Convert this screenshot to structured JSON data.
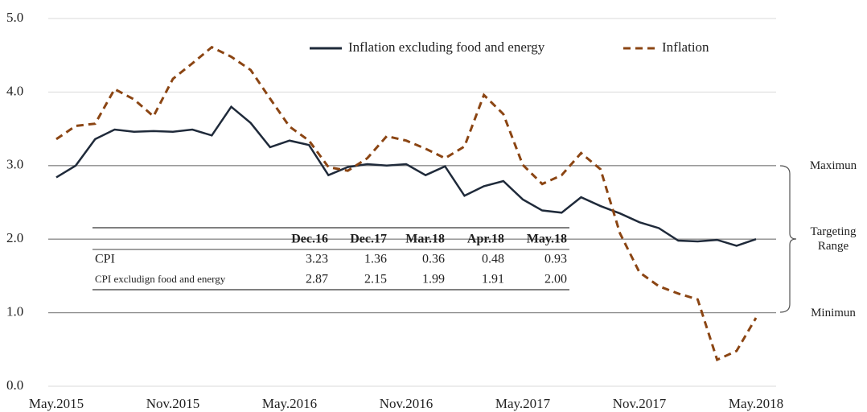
{
  "chart_data": {
    "type": "line",
    "categories": [
      "May.2015",
      null,
      null,
      null,
      null,
      null,
      "Nov.2015",
      null,
      null,
      null,
      null,
      null,
      "May.2016",
      null,
      null,
      null,
      null,
      null,
      "Nov.2016",
      null,
      null,
      null,
      null,
      null,
      "May.2017",
      null,
      null,
      null,
      null,
      null,
      "Nov.2017",
      null,
      null,
      null,
      null,
      null,
      "May.2018"
    ],
    "series": [
      {
        "name": "Inflation excluding food and energy",
        "color": "#1f2a3a",
        "dash": false,
        "values": [
          2.84,
          3.0,
          3.36,
          3.49,
          3.46,
          3.47,
          3.46,
          3.49,
          3.41,
          3.8,
          3.58,
          3.25,
          3.34,
          3.28,
          2.87,
          2.98,
          3.02,
          3.0,
          3.02,
          2.87,
          2.99,
          2.59,
          2.72,
          2.79,
          2.54,
          2.39,
          2.36,
          2.57,
          2.45,
          2.35,
          2.23,
          2.15,
          1.98,
          1.97,
          1.99,
          1.91,
          2.0
        ]
      },
      {
        "name": "Inflation",
        "color": "#8b4513",
        "dash": true,
        "values": [
          3.36,
          3.54,
          3.57,
          4.04,
          3.9,
          3.67,
          4.18,
          4.39,
          4.61,
          4.48,
          4.3,
          3.91,
          3.53,
          3.34,
          2.98,
          2.93,
          3.1,
          3.4,
          3.34,
          3.23,
          3.1,
          3.26,
          3.96,
          3.7,
          3.01,
          2.75,
          2.87,
          3.17,
          2.95,
          2.08,
          1.55,
          1.36,
          1.26,
          1.18,
          0.36,
          0.48,
          0.93
        ]
      }
    ],
    "ylim": [
      0,
      5
    ],
    "yticks": [
      {
        "value": 0,
        "label": "0.0"
      },
      {
        "value": 1,
        "label": "1.0"
      },
      {
        "value": 2,
        "label": "2.0"
      },
      {
        "value": 3,
        "label": "3.0"
      },
      {
        "value": 4,
        "label": "4.0"
      },
      {
        "value": 5,
        "label": "5.0"
      }
    ],
    "grid": true,
    "legend": "top",
    "annotations": [
      {
        "text": "Maximun",
        "value": 3
      },
      {
        "text": "Targeting Range",
        "value": 2
      },
      {
        "text": "Minimun",
        "value": 1
      }
    ],
    "table": {
      "columns": [
        "Dec.16",
        "Dec.17",
        "Mar.18",
        "Apr.18",
        "May.18"
      ],
      "rows": [
        {
          "label": "CPI",
          "values": [
            "3.23",
            "1.36",
            "0.36",
            "0.48",
            "0.93"
          ]
        },
        {
          "label": "CPI excludign food and energy",
          "values": [
            "2.87",
            "2.15",
            "1.99",
            "1.91",
            "2.00"
          ]
        }
      ]
    }
  }
}
